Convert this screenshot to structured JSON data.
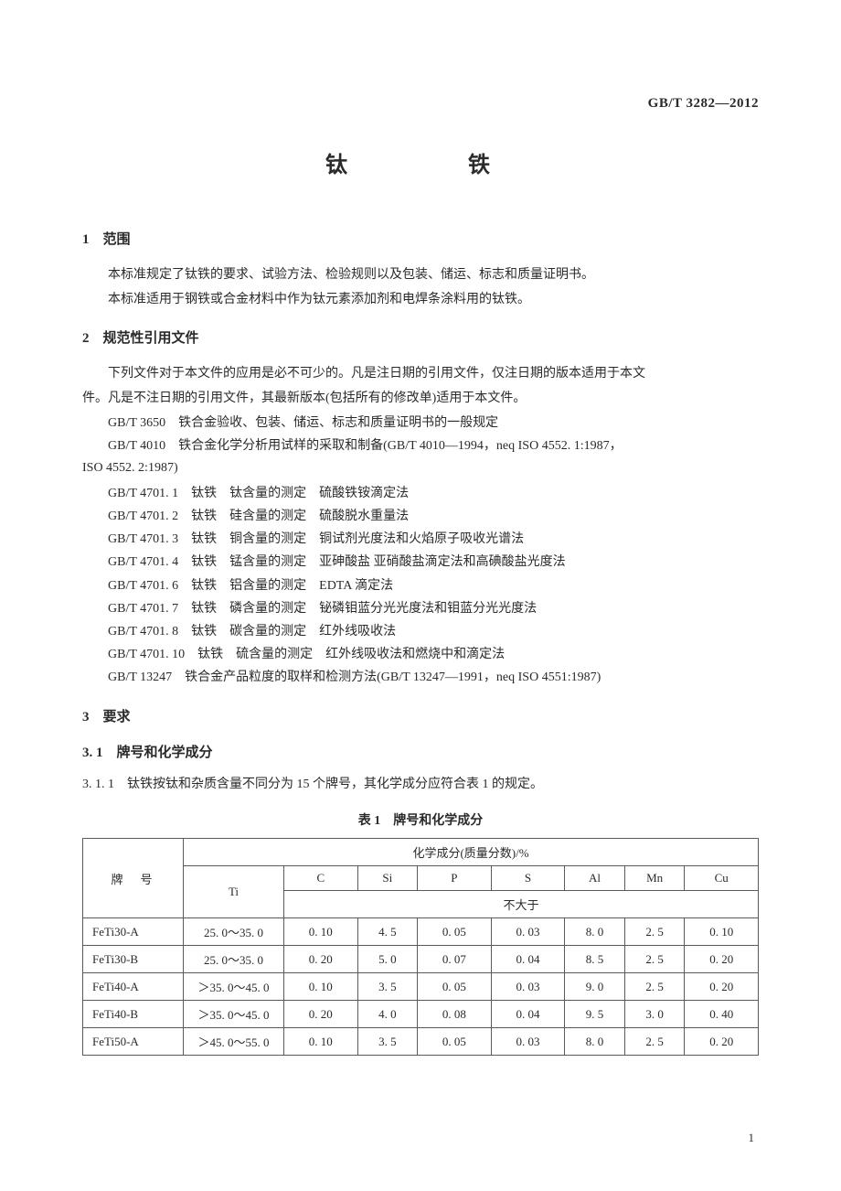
{
  "standard_number": "GB/T 3282—2012",
  "title": "钛　　铁",
  "sec1": {
    "heading": "1　范围",
    "p1": "本标准规定了钛铁的要求、试验方法、检验规则以及包装、储运、标志和质量证明书。",
    "p2": "本标准适用于钢铁或合金材料中作为钛元素添加剂和电焊条涂料用的钛铁。"
  },
  "sec2": {
    "heading": "2　规范性引用文件",
    "intro1": "下列文件对于本文件的应用是必不可少的。凡是注日期的引用文件，仅注日期的版本适用于本文",
    "intro2": "件。凡是不注日期的引用文件，其最新版本(包括所有的修改单)适用于本文件。",
    "r1": "GB/T 3650　铁合金验收、包装、储运、标志和质量证明书的一般规定",
    "r2a": "GB/T 4010　铁合金化学分析用试样的采取和制备(GB/T 4010—1994，neq ISO 4552. 1:1987，",
    "r2b": "ISO 4552. 2:1987)",
    "r3": "GB/T 4701. 1　钛铁　钛含量的测定　硫酸铁铵滴定法",
    "r4": "GB/T 4701. 2　钛铁　硅含量的测定　硫酸脱水重量法",
    "r5": "GB/T 4701. 3　钛铁　铜含量的测定　铜试剂光度法和火焰原子吸收光谱法",
    "r6": "GB/T 4701. 4　钛铁　锰含量的测定　亚砷酸盐 亚硝酸盐滴定法和高碘酸盐光度法",
    "r7": "GB/T 4701. 6　钛铁　铝含量的测定　EDTA 滴定法",
    "r8": "GB/T 4701. 7　钛铁　磷含量的测定　铋磷钼蓝分光光度法和钼蓝分光光度法",
    "r9": "GB/T 4701. 8　钛铁　碳含量的测定　红外线吸收法",
    "r10": "GB/T 4701. 10　钛铁　硫含量的测定　红外线吸收法和燃烧中和滴定法",
    "r11": "GB/T 13247　铁合金产品粒度的取样和检测方法(GB/T 13247—1991，neq ISO 4551:1987)"
  },
  "sec3": {
    "heading": "3　要求",
    "sub1_heading": "3. 1　牌号和化学成分",
    "sub1_p1": "3. 1. 1　钛铁按钛和杂质含量不同分为 15 个牌号，其化学成分应符合表 1 的规定。",
    "table_caption": "表 1　牌号和化学成分"
  },
  "table": {
    "h_brand": "牌　号",
    "h_chem": "化学成分(质量分数)/%",
    "h_ti": "Ti",
    "h_c": "C",
    "h_si": "Si",
    "h_p": "P",
    "h_s": "S",
    "h_al": "Al",
    "h_mn": "Mn",
    "h_cu": "Cu",
    "h_le": "不大于",
    "rows": [
      {
        "brand": "FeTi30-A",
        "ti": "25. 0～35. 0",
        "c": "0. 10",
        "si": "4. 5",
        "p": "0. 05",
        "s": "0. 03",
        "al": "8. 0",
        "mn": "2. 5",
        "cu": "0. 10"
      },
      {
        "brand": "FeTi30-B",
        "ti": "25. 0～35. 0",
        "c": "0. 20",
        "si": "5. 0",
        "p": "0. 07",
        "s": "0. 04",
        "al": "8. 5",
        "mn": "2. 5",
        "cu": "0. 20"
      },
      {
        "brand": "FeTi40-A",
        "ti": "＞35. 0～45. 0",
        "c": "0. 10",
        "si": "3. 5",
        "p": "0. 05",
        "s": "0. 03",
        "al": "9. 0",
        "mn": "2. 5",
        "cu": "0. 20"
      },
      {
        "brand": "FeTi40-B",
        "ti": "＞35. 0～45. 0",
        "c": "0. 20",
        "si": "4. 0",
        "p": "0. 08",
        "s": "0. 04",
        "al": "9. 5",
        "mn": "3. 0",
        "cu": "0. 40"
      },
      {
        "brand": "FeTi50-A",
        "ti": "＞45. 0～55. 0",
        "c": "0. 10",
        "si": "3. 5",
        "p": "0. 05",
        "s": "0. 03",
        "al": "8. 0",
        "mn": "2. 5",
        "cu": "0. 20"
      }
    ]
  },
  "pagenum": "1"
}
